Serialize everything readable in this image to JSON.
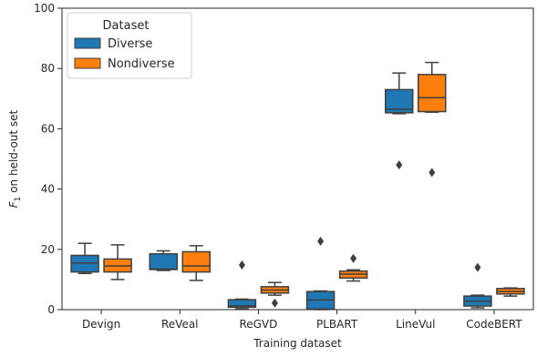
{
  "chart_data": {
    "type": "box",
    "title": "",
    "xlabel": "Training dataset",
    "ylabel": "F1 on held-out set",
    "ylim": [
      0,
      100
    ],
    "yticks": [
      0,
      20,
      40,
      60,
      80,
      100
    ],
    "grid": false,
    "categories": [
      "Devign",
      "ReVeal",
      "ReGVD",
      "PLBART",
      "LineVul",
      "CodeBERT"
    ],
    "legend": {
      "title": "Dataset",
      "placement": "top-left",
      "entries": [
        "Diverse",
        "Nondiverse"
      ]
    },
    "series": [
      {
        "name": "Diverse",
        "color": "#1f77b4",
        "boxes": [
          {
            "whisker_low": 12.0,
            "q1": 12.5,
            "median": 15.5,
            "q3": 18.0,
            "whisker_high": 22.0,
            "outliers": []
          },
          {
            "whisker_low": 13.0,
            "q1": 13.3,
            "median": 13.5,
            "q3": 18.5,
            "whisker_high": 19.5,
            "outliers": []
          },
          {
            "whisker_low": 0.3,
            "q1": 0.8,
            "median": 1.2,
            "q3": 3.3,
            "whisker_high": 3.5,
            "outliers": [
              14.8
            ]
          },
          {
            "whisker_low": 0.0,
            "q1": 0.2,
            "median": 3.2,
            "q3": 6.0,
            "whisker_high": 6.2,
            "outliers": [
              22.7
            ]
          },
          {
            "whisker_low": 65.0,
            "q1": 65.3,
            "median": 66.5,
            "q3": 73.0,
            "whisker_high": 78.5,
            "outliers": [
              48.0
            ]
          },
          {
            "whisker_low": 0.6,
            "q1": 1.2,
            "median": 2.8,
            "q3": 4.5,
            "whisker_high": 4.8,
            "outliers": [
              14.0
            ]
          }
        ]
      },
      {
        "name": "Nondiverse",
        "color": "#ff7f0e",
        "boxes": [
          {
            "whisker_low": 10.0,
            "q1": 12.5,
            "median": 14.5,
            "q3": 16.8,
            "whisker_high": 21.5,
            "outliers": []
          },
          {
            "whisker_low": 9.7,
            "q1": 12.5,
            "median": 14.5,
            "q3": 19.2,
            "whisker_high": 21.2,
            "outliers": []
          },
          {
            "whisker_low": 4.8,
            "q1": 5.5,
            "median": 6.5,
            "q3": 7.6,
            "whisker_high": 9.0,
            "outliers": [
              2.2
            ]
          },
          {
            "whisker_low": 9.5,
            "q1": 10.5,
            "median": 11.8,
            "q3": 12.8,
            "whisker_high": 13.2,
            "outliers": [
              17.0
            ]
          },
          {
            "whisker_low": 65.5,
            "q1": 65.7,
            "median": 70.3,
            "q3": 78.0,
            "whisker_high": 82.0,
            "outliers": [
              45.5
            ]
          },
          {
            "whisker_low": 4.5,
            "q1": 5.2,
            "median": 6.0,
            "q3": 7.0,
            "whisker_high": 7.2,
            "outliers": []
          }
        ]
      }
    ]
  }
}
